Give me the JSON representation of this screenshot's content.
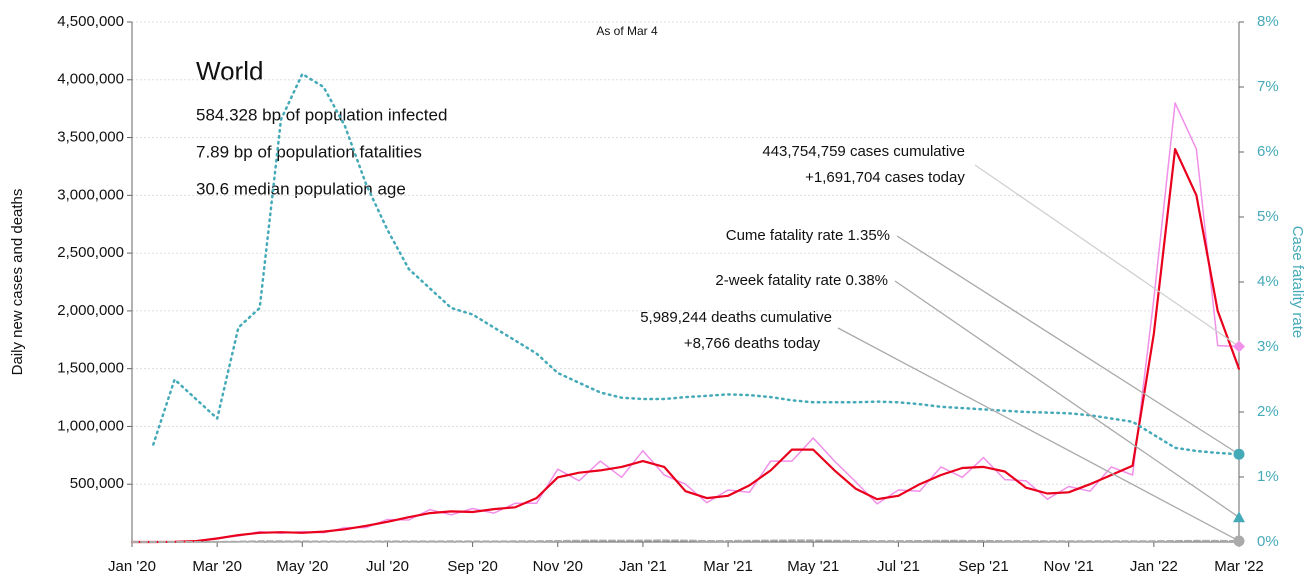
{
  "chart_data": {
    "type": "line",
    "subtitle": "As of Mar 4",
    "title": "World",
    "info": [
      "584.328 bp of population infected",
      "7.89 bp of population fatalities",
      "30.6 median population age"
    ],
    "ylabel": "Daily new cases and deaths",
    "y2label": "Case fatality rate",
    "x": [
      0,
      0.5,
      1,
      1.5,
      2,
      2.5,
      3,
      3.5,
      4,
      4.5,
      5,
      5.5,
      6,
      6.5,
      7,
      7.5,
      8,
      8.5,
      9,
      9.5,
      10,
      10.5,
      11,
      11.5,
      12,
      12.5,
      13,
      13.5,
      14,
      14.5,
      15,
      15.5,
      16,
      16.5,
      17,
      17.5,
      18,
      18.5,
      19,
      19.5,
      20,
      20.5,
      21,
      21.5,
      22,
      22.5,
      23,
      23.5,
      24,
      24.5,
      25,
      25.5,
      26
    ],
    "xlim": [
      0,
      26
    ],
    "xticks": [
      {
        "value": 0,
        "label": "Jan '20"
      },
      {
        "value": 2,
        "label": "Mar '20"
      },
      {
        "value": 4,
        "label": "May '20"
      },
      {
        "value": 6,
        "label": "Jul '20"
      },
      {
        "value": 8,
        "label": "Sep '20"
      },
      {
        "value": 10,
        "label": "Nov '20"
      },
      {
        "value": 12,
        "label": "Jan '21"
      },
      {
        "value": 14,
        "label": "Mar '21"
      },
      {
        "value": 16,
        "label": "May '21"
      },
      {
        "value": 18,
        "label": "Jul '21"
      },
      {
        "value": 20,
        "label": "Sep '21"
      },
      {
        "value": 22,
        "label": "Nov '21"
      },
      {
        "value": 24,
        "label": "Jan '22"
      },
      {
        "value": 26,
        "label": "Mar '22"
      }
    ],
    "ylim": [
      0,
      4500000
    ],
    "yticks": [
      {
        "value": 500000,
        "label": "500,000"
      },
      {
        "value": 1000000,
        "label": "1,000,000"
      },
      {
        "value": 1500000,
        "label": "1,500,000"
      },
      {
        "value": 2000000,
        "label": "2,000,000"
      },
      {
        "value": 2500000,
        "label": "2,500,000"
      },
      {
        "value": 3000000,
        "label": "3,000,000"
      },
      {
        "value": 3500000,
        "label": "3,500,000"
      },
      {
        "value": 4000000,
        "label": "4,000,000"
      },
      {
        "value": 4500000,
        "label": "4,500,000"
      }
    ],
    "y2lim": [
      0,
      8
    ],
    "y2ticks": [
      {
        "value": 0,
        "label": "0%"
      },
      {
        "value": 1,
        "label": "1%"
      },
      {
        "value": 2,
        "label": "2%"
      },
      {
        "value": 3,
        "label": "3%"
      },
      {
        "value": 4,
        "label": "4%"
      },
      {
        "value": 5,
        "label": "5%"
      },
      {
        "value": 6,
        "label": "6%"
      },
      {
        "value": 7,
        "label": "7%"
      },
      {
        "value": 8,
        "label": "8%"
      }
    ],
    "grid": true,
    "series": [
      {
        "color": "#f090e8",
        "style": "solid",
        "width": 1.5,
        "values": [
          0,
          0,
          2500,
          7000,
          35000,
          52000,
          90000,
          75000,
          90000,
          80000,
          125000,
          125000,
          195000,
          190000,
          280000,
          235000,
          290000,
          250000,
          335000,
          335000,
          630000,
          530000,
          700000,
          560000,
          790000,
          580000,
          500000,
          340000,
          450000,
          430000,
          700000,
          700000,
          900000,
          700000,
          520000,
          330000,
          450000,
          440000,
          650000,
          560000,
          730000,
          540000,
          530000,
          370000,
          480000,
          440000,
          650000,
          580000,
          2100000,
          3800000,
          3400000,
          1700000,
          1691704
        ]
      },
      {
        "color": "#e8001c",
        "style": "solid",
        "width": 2.2,
        "values": [
          0,
          0,
          2000,
          8000,
          30000,
          60000,
          80000,
          85000,
          80000,
          90000,
          110000,
          140000,
          175000,
          215000,
          250000,
          265000,
          260000,
          285000,
          300000,
          380000,
          560000,
          600000,
          620000,
          650000,
          700000,
          650000,
          440000,
          380000,
          400000,
          490000,
          620000,
          800000,
          800000,
          620000,
          460000,
          370000,
          400000,
          500000,
          580000,
          640000,
          650000,
          610000,
          470000,
          420000,
          430000,
          500000,
          580000,
          660000,
          1800000,
          3400000,
          3000000,
          2000000,
          1500000
        ]
      },
      {
        "color": "#aaaaaa",
        "style": "dashed",
        "width": 2,
        "values": [
          0,
          0,
          0,
          0,
          500,
          3000,
          6000,
          6000,
          5000,
          4500,
          4500,
          4500,
          5000,
          5500,
          5500,
          5800,
          5600,
          5500,
          6000,
          7000,
          9000,
          11000,
          12000,
          11500,
          13000,
          14000,
          12000,
          9000,
          9000,
          10000,
          12000,
          13500,
          13500,
          11000,
          9000,
          8000,
          8000,
          9000,
          10000,
          10000,
          9500,
          8000,
          7500,
          7000,
          7000,
          7000,
          7000,
          6500,
          7000,
          9000,
          10000,
          9500,
          8766
        ]
      },
      {
        "color": "#45aab8",
        "style": "dotted",
        "width": 2.5,
        "axis": "y2",
        "values": [
          null,
          1.5,
          2.5,
          2.2,
          1.9,
          3.3,
          3.6,
          6.5,
          7.2,
          7.0,
          6.4,
          5.5,
          4.8,
          4.2,
          3.9,
          3.6,
          3.5,
          3.3,
          3.1,
          2.9,
          2.6,
          2.45,
          2.3,
          2.22,
          2.2,
          2.2,
          2.23,
          2.25,
          2.27,
          2.26,
          2.23,
          2.18,
          2.15,
          2.15,
          2.15,
          2.16,
          2.15,
          2.12,
          2.08,
          2.06,
          2.04,
          2.02,
          2.0,
          1.99,
          1.98,
          1.95,
          1.9,
          1.85,
          1.65,
          1.45,
          1.4,
          1.37,
          1.35
        ]
      }
    ],
    "annotations": [
      {
        "lines": [
          "443,754,759 cases cumulative",
          "+1,691,704 cases today"
        ],
        "value": 1691704,
        "axis": "y",
        "color": "#f090e8",
        "shape": "diamond"
      },
      {
        "lines": [
          "Cume fatality rate 1.35%"
        ],
        "value": 1.35,
        "axis": "y2",
        "color": "#45aab8",
        "shape": "circle"
      },
      {
        "lines": [
          "2-week fatality rate 0.38%"
        ],
        "value": 0.38,
        "axis": "y2",
        "color": "#45aab8",
        "shape": "triangle"
      },
      {
        "lines": [
          "5,989,244 deaths cumulative",
          "+8,766 deaths today"
        ],
        "value": 8766,
        "axis": "y",
        "color": "#aaaaaa",
        "shape": "circle"
      }
    ]
  }
}
